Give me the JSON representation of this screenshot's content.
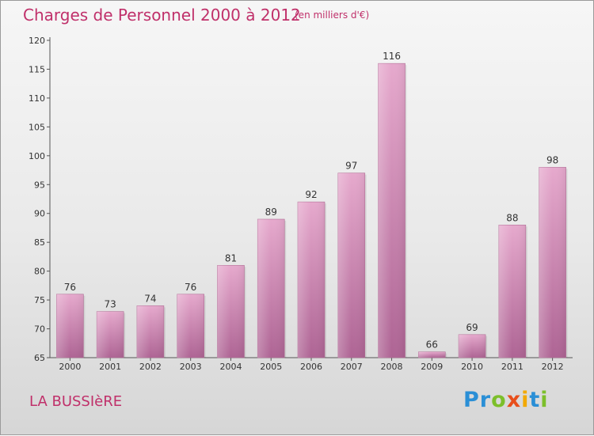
{
  "chart_data": {
    "type": "bar",
    "title": "Charges de Personnel 2000 à 2012",
    "subtitle": "(en milliers d'€)",
    "categories": [
      "2000",
      "2001",
      "2002",
      "2003",
      "2004",
      "2005",
      "2006",
      "2007",
      "2008",
      "2009",
      "2010",
      "2011",
      "2012"
    ],
    "values": [
      76,
      73,
      74,
      76,
      81,
      89,
      92,
      97,
      116,
      66,
      69,
      88,
      98
    ],
    "ylim": [
      65,
      120
    ],
    "yticks": [
      65,
      70,
      75,
      80,
      85,
      90,
      95,
      100,
      105,
      110,
      115,
      120
    ],
    "bar_color": "#d98cb8",
    "grid": false
  },
  "place_name": "LA BUSSIèRE",
  "logo": {
    "letters": [
      "P",
      "r",
      "o",
      "x",
      "i",
      "t",
      "i"
    ]
  }
}
